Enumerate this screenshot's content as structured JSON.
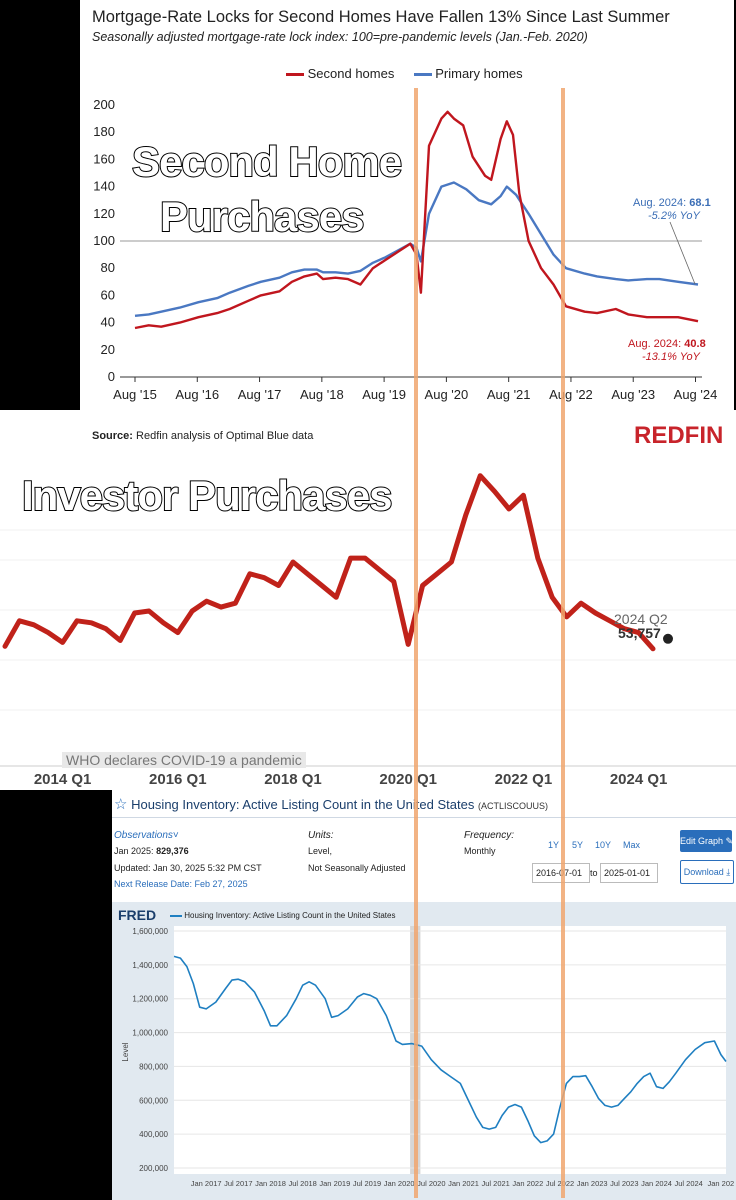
{
  "colors": {
    "second_homes": "#c0161e",
    "primary_homes": "#4a78c2",
    "investor": "#c0221a",
    "fred_line": "#1f7fc1",
    "marker_line": "#f0a66f",
    "redfin_red": "#c8242b"
  },
  "panel1": {
    "title": "Mortgage-Rate Locks for Second Homes Have Fallen 13% Since Last Summer",
    "subtitle": "Seasonally adjusted mortgage-rate lock index: 100=pre-pandemic levels (Jan.-Feb. 2020)",
    "overlay_line1": "Second Home",
    "overlay_line2": "Purchases",
    "source_label": "Source:",
    "source_text": "Redfin analysis of Optimal Blue data",
    "logo": "REDFIN",
    "annotation_primary_label": "Aug. 2024:",
    "annotation_primary_value": "68.1",
    "annotation_primary_yoy": "-5.2% YoY",
    "annotation_second_label": "Aug. 2024:",
    "annotation_second_value": "40.8",
    "annotation_second_yoy": "-13.1% YoY"
  },
  "panel2": {
    "overlay": "Investor Purchases",
    "label_top": "2024 Q2",
    "label_value": "53,757",
    "covid_note": "WHO declares COVID-19 a pandemic"
  },
  "panel3": {
    "title": "Housing Inventory: Active Listing Count in the United States",
    "series_id": "(ACTLISCOUUS)",
    "observations_label": "Observations",
    "obs_date_label": "Jan 2025:",
    "obs_value": "829,376",
    "updated": "Updated: Jan 30, 2025 5:32 PM CST",
    "next_release": "Next Release Date: Feb 27, 2025",
    "units_label": "Units:",
    "units_line1": "Level,",
    "units_line2": "Not Seasonally Adjusted",
    "frequency_label": "Frequency:",
    "frequency_value": "Monthly",
    "range_buttons": [
      "1Y",
      "5Y",
      "10Y",
      "Max"
    ],
    "date_from": "2016-07-01",
    "date_to_word": "to",
    "date_to": "2025-01-01",
    "edit_graph": "Edit Graph",
    "download": "Download",
    "fred_logo": "FRED",
    "legend": "Housing Inventory: Active Listing Count in the United States"
  },
  "chart_data": [
    {
      "type": "line",
      "title": "Mortgage-Rate Locks for Second Homes Have Fallen 13% Since Last Summer",
      "subtitle": "Seasonally adjusted mortgage-rate lock index: 100=pre-pandemic levels (Jan.-Feb. 2020)",
      "xlabel": "",
      "ylabel": "",
      "x_ticks": [
        "Aug '15",
        "Aug '16",
        "Aug '17",
        "Aug '18",
        "Aug '19",
        "Aug '20",
        "Aug '21",
        "Aug '22",
        "Aug '23",
        "Aug '24"
      ],
      "y_ticks": [
        0,
        20,
        40,
        60,
        80,
        100,
        120,
        140,
        160,
        180,
        200
      ],
      "ylim": [
        0,
        200
      ],
      "xlim": [
        2015.58,
        2024.62
      ],
      "reference_line": 100,
      "legend": "top-center",
      "series": [
        {
          "name": "Second homes",
          "points": [
            [
              2015.58,
              36
            ],
            [
              2015.8,
              38
            ],
            [
              2016.0,
              37
            ],
            [
              2016.3,
              40
            ],
            [
              2016.6,
              44
            ],
            [
              2016.9,
              47
            ],
            [
              2017.1,
              50
            ],
            [
              2017.4,
              56
            ],
            [
              2017.6,
              60
            ],
            [
              2017.9,
              63
            ],
            [
              2018.1,
              70
            ],
            [
              2018.3,
              74
            ],
            [
              2018.5,
              76
            ],
            [
              2018.6,
              72
            ],
            [
              2018.8,
              73
            ],
            [
              2019.0,
              72
            ],
            [
              2019.2,
              68
            ],
            [
              2019.4,
              80
            ],
            [
              2019.6,
              86
            ],
            [
              2019.8,
              92
            ],
            [
              2020.0,
              98
            ],
            [
              2020.1,
              90
            ],
            [
              2020.17,
              62
            ],
            [
              2020.3,
              170
            ],
            [
              2020.5,
              190
            ],
            [
              2020.6,
              195
            ],
            [
              2020.7,
              190
            ],
            [
              2020.85,
              185
            ],
            [
              2021.0,
              162
            ],
            [
              2021.2,
              148
            ],
            [
              2021.3,
              145
            ],
            [
              2021.45,
              175
            ],
            [
              2021.55,
              188
            ],
            [
              2021.65,
              178
            ],
            [
              2021.75,
              135
            ],
            [
              2021.9,
              100
            ],
            [
              2022.1,
              80
            ],
            [
              2022.3,
              68
            ],
            [
              2022.5,
              52
            ],
            [
              2022.8,
              48
            ],
            [
              2023.0,
              47
            ],
            [
              2023.3,
              50
            ],
            [
              2023.5,
              46
            ],
            [
              2023.8,
              44
            ],
            [
              2024.0,
              44
            ],
            [
              2024.3,
              44
            ],
            [
              2024.62,
              41
            ]
          ]
        },
        {
          "name": "Primary homes",
          "points": [
            [
              2015.58,
              45
            ],
            [
              2015.8,
              46
            ],
            [
              2016.0,
              48
            ],
            [
              2016.3,
              51
            ],
            [
              2016.6,
              55
            ],
            [
              2016.9,
              58
            ],
            [
              2017.1,
              62
            ],
            [
              2017.4,
              67
            ],
            [
              2017.6,
              70
            ],
            [
              2017.9,
              73
            ],
            [
              2018.1,
              77
            ],
            [
              2018.3,
              79
            ],
            [
              2018.5,
              79
            ],
            [
              2018.6,
              77
            ],
            [
              2018.8,
              77
            ],
            [
              2019.0,
              76
            ],
            [
              2019.2,
              78
            ],
            [
              2019.4,
              84
            ],
            [
              2019.6,
              88
            ],
            [
              2019.8,
              93
            ],
            [
              2020.0,
              98
            ],
            [
              2020.1,
              95
            ],
            [
              2020.17,
              85
            ],
            [
              2020.3,
              120
            ],
            [
              2020.5,
              140
            ],
            [
              2020.7,
              143
            ],
            [
              2020.9,
              138
            ],
            [
              2021.1,
              130
            ],
            [
              2021.3,
              127
            ],
            [
              2021.45,
              133
            ],
            [
              2021.55,
              140
            ],
            [
              2021.7,
              134
            ],
            [
              2021.9,
              120
            ],
            [
              2022.1,
              105
            ],
            [
              2022.3,
              90
            ],
            [
              2022.5,
              80
            ],
            [
              2022.8,
              76
            ],
            [
              2023.0,
              74
            ],
            [
              2023.3,
              72
            ],
            [
              2023.5,
              71
            ],
            [
              2023.8,
              72
            ],
            [
              2024.0,
              72
            ],
            [
              2024.3,
              70
            ],
            [
              2024.62,
              68
            ]
          ]
        }
      ]
    },
    {
      "type": "line",
      "title": "",
      "xlabel": "",
      "ylabel": "",
      "x_ticks": [
        "2014 Q1",
        "2016 Q1",
        "2018 Q1",
        "2020 Q1",
        "2022 Q1",
        "2024 Q1"
      ],
      "xlim": [
        2013.0,
        2025.5
      ],
      "ylim": [
        20000,
        150000
      ],
      "series": [
        {
          "name": "",
          "points": [
            [
              2013.0,
              55000
            ],
            [
              2013.25,
              68000
            ],
            [
              2013.5,
              66000
            ],
            [
              2013.75,
              62000
            ],
            [
              2014.0,
              57000
            ],
            [
              2014.25,
              68000
            ],
            [
              2014.5,
              67000
            ],
            [
              2014.75,
              64000
            ],
            [
              2015.0,
              58000
            ],
            [
              2015.25,
              72000
            ],
            [
              2015.5,
              73000
            ],
            [
              2015.75,
              67000
            ],
            [
              2016.0,
              62000
            ],
            [
              2016.25,
              73000
            ],
            [
              2016.5,
              78000
            ],
            [
              2016.75,
              75000
            ],
            [
              2017.0,
              77000
            ],
            [
              2017.25,
              92000
            ],
            [
              2017.5,
              90000
            ],
            [
              2017.75,
              86000
            ],
            [
              2018.0,
              98000
            ],
            [
              2018.25,
              92000
            ],
            [
              2018.5,
              86000
            ],
            [
              2018.75,
              80000
            ],
            [
              2019.0,
              100000
            ],
            [
              2019.25,
              100000
            ],
            [
              2019.5,
              94000
            ],
            [
              2019.75,
              88000
            ],
            [
              2020.0,
              56000
            ],
            [
              2020.25,
              86000
            ],
            [
              2020.5,
              92000
            ],
            [
              2020.75,
              98000
            ],
            [
              2021.0,
              122000
            ],
            [
              2021.25,
              142000
            ],
            [
              2021.5,
              134000
            ],
            [
              2021.75,
              125000
            ],
            [
              2022.0,
              132000
            ],
            [
              2022.25,
              100000
            ],
            [
              2022.5,
              80000
            ],
            [
              2022.75,
              70000
            ],
            [
              2023.0,
              77000
            ],
            [
              2023.25,
              72000
            ],
            [
              2023.5,
              68000
            ],
            [
              2023.75,
              64000
            ],
            [
              2024.0,
              62000
            ],
            [
              2024.25,
              53757
            ]
          ]
        }
      ]
    },
    {
      "type": "line",
      "title": "Housing Inventory: Active Listing Count in the United States",
      "xlabel": "",
      "ylabel": "Level",
      "x_ticks": [
        "Jan 2017",
        "Jul 2017",
        "Jan 2018",
        "Jul 2018",
        "Jan 2019",
        "Jul 2019",
        "Jan 2020",
        "Jul 2020",
        "Jan 2021",
        "Jul 2021",
        "Jan 2022",
        "Jul 2022",
        "Jan 2023",
        "Jul 2023",
        "Jan 2024",
        "Jul 2024",
        "Jan 202"
      ],
      "y_ticks": [
        "200,000",
        "400,000",
        "600,000",
        "800,000",
        "1,000,000",
        "1,200,000",
        "1,400,000",
        "1,600,000"
      ],
      "ylim": [
        200000,
        1600000
      ],
      "xlim": [
        2016.5,
        2025.08
      ],
      "recession_band": [
        2020.17,
        2020.33
      ],
      "series": [
        {
          "name": "Housing Inventory: Active Listing Count in the United States",
          "points": [
            [
              2016.5,
              1450000
            ],
            [
              2016.6,
              1440000
            ],
            [
              2016.7,
              1390000
            ],
            [
              2016.8,
              1290000
            ],
            [
              2016.9,
              1150000
            ],
            [
              2017.0,
              1140000
            ],
            [
              2017.15,
              1180000
            ],
            [
              2017.3,
              1260000
            ],
            [
              2017.4,
              1310000
            ],
            [
              2017.5,
              1315000
            ],
            [
              2017.6,
              1300000
            ],
            [
              2017.75,
              1240000
            ],
            [
              2017.9,
              1130000
            ],
            [
              2018.0,
              1040000
            ],
            [
              2018.1,
              1040000
            ],
            [
              2018.25,
              1100000
            ],
            [
              2018.4,
              1200000
            ],
            [
              2018.5,
              1280000
            ],
            [
              2018.6,
              1300000
            ],
            [
              2018.7,
              1280000
            ],
            [
              2018.85,
              1200000
            ],
            [
              2018.95,
              1090000
            ],
            [
              2019.05,
              1100000
            ],
            [
              2019.2,
              1140000
            ],
            [
              2019.35,
              1210000
            ],
            [
              2019.45,
              1230000
            ],
            [
              2019.55,
              1220000
            ],
            [
              2019.65,
              1200000
            ],
            [
              2019.8,
              1100000
            ],
            [
              2019.95,
              950000
            ],
            [
              2020.05,
              930000
            ],
            [
              2020.2,
              935000
            ],
            [
              2020.35,
              920000
            ],
            [
              2020.5,
              840000
            ],
            [
              2020.65,
              780000
            ],
            [
              2020.8,
              740000
            ],
            [
              2020.95,
              700000
            ],
            [
              2021.05,
              620000
            ],
            [
              2021.2,
              500000
            ],
            [
              2021.3,
              440000
            ],
            [
              2021.4,
              430000
            ],
            [
              2021.5,
              440000
            ],
            [
              2021.6,
              510000
            ],
            [
              2021.7,
              560000
            ],
            [
              2021.8,
              575000
            ],
            [
              2021.9,
              560000
            ],
            [
              2022.0,
              480000
            ],
            [
              2022.1,
              390000
            ],
            [
              2022.2,
              350000
            ],
            [
              2022.3,
              360000
            ],
            [
              2022.4,
              400000
            ],
            [
              2022.5,
              560000
            ],
            [
              2022.6,
              700000
            ],
            [
              2022.7,
              740000
            ],
            [
              2022.8,
              740000
            ],
            [
              2022.9,
              745000
            ],
            [
              2023.0,
              680000
            ],
            [
              2023.1,
              610000
            ],
            [
              2023.2,
              570000
            ],
            [
              2023.3,
              560000
            ],
            [
              2023.4,
              570000
            ],
            [
              2023.5,
              610000
            ],
            [
              2023.6,
              650000
            ],
            [
              2023.7,
              700000
            ],
            [
              2023.8,
              740000
            ],
            [
              2023.9,
              760000
            ],
            [
              2024.0,
              680000
            ],
            [
              2024.1,
              670000
            ],
            [
              2024.2,
              710000
            ],
            [
              2024.3,
              760000
            ],
            [
              2024.45,
              840000
            ],
            [
              2024.6,
              900000
            ],
            [
              2024.75,
              940000
            ],
            [
              2024.9,
              950000
            ],
            [
              2025.0,
              870000
            ],
            [
              2025.08,
              829376
            ]
          ]
        }
      ]
    }
  ]
}
